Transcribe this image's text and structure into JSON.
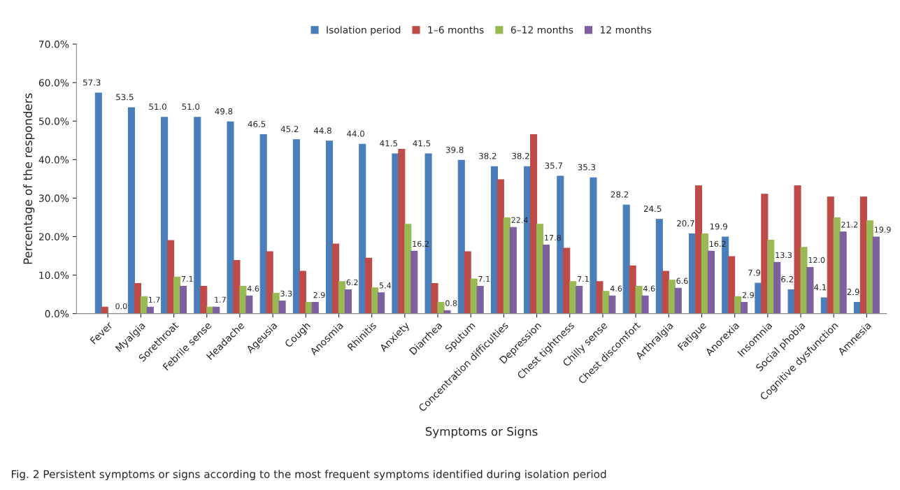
{
  "chart_data": {
    "type": "bar",
    "xlabel": "Symptoms or Signs",
    "ylabel": "Percentage of the responders",
    "categories": [
      "Fever",
      "Myalgia",
      "Sorethroat",
      "Febrile sense",
      "Headache",
      "Ageusia",
      "Cough",
      "Anosmia",
      "Rhinitis",
      "Anxiety",
      "Diarrhea",
      "Sputum",
      "Concentration difficulties",
      "Depression",
      "Chest tightness",
      "Chilly sense",
      "Chest discomfort",
      "Arthralgia",
      "Fatigue",
      "Anorexia",
      "Insomnia",
      "Social phobia",
      "Cognitive dysfunction",
      "Amnesia"
    ],
    "series": [
      {
        "name": "Isolation period",
        "color": "#4a7ebb",
        "values": [
          57.3,
          53.5,
          51.0,
          51.0,
          49.8,
          46.5,
          45.2,
          44.8,
          44.0,
          41.5,
          41.5,
          39.8,
          38.2,
          38.2,
          35.7,
          35.3,
          28.2,
          24.5,
          20.7,
          19.9,
          7.9,
          6.2,
          4.1,
          2.9
        ],
        "value_labels": [
          "57.3",
          "53.5",
          "51.0",
          "51.0",
          "49.8",
          "46.5",
          "45.2",
          "44.8",
          "44.0",
          "41.5",
          "41.5",
          "39.8",
          "38.2",
          "38.2",
          "35.7",
          "35.3",
          "28.2",
          "24.5",
          "20.7",
          "19.9",
          "7.9",
          "6.2",
          "4.1",
          "2.9"
        ]
      },
      {
        "name": "1–6 months",
        "color": "#be4b48",
        "values": [
          1.7,
          7.8,
          19.0,
          7.1,
          13.8,
          16.1,
          11.0,
          18.1,
          14.4,
          42.7,
          7.8,
          16.1,
          34.8,
          46.5,
          17.0,
          8.3,
          12.4,
          11.0,
          33.2,
          14.8,
          31.0,
          33.2,
          30.3,
          30.3
        ]
      },
      {
        "name": "6–12 months",
        "color": "#98b954",
        "values": [
          0.0,
          4.4,
          9.5,
          1.7,
          7.1,
          5.3,
          2.9,
          8.3,
          6.7,
          23.2,
          2.9,
          9.0,
          24.9,
          23.2,
          8.3,
          5.8,
          7.1,
          8.7,
          20.7,
          4.4,
          19.1,
          17.2,
          24.9,
          24.1
        ]
      },
      {
        "name": "12 months",
        "color": "#7d60a0",
        "values": [
          0.0,
          1.7,
          7.1,
          1.7,
          4.6,
          3.3,
          2.9,
          6.2,
          5.4,
          16.2,
          0.8,
          7.1,
          22.4,
          17.8,
          7.1,
          4.6,
          4.6,
          6.6,
          16.2,
          2.9,
          13.3,
          12.0,
          21.2,
          19.9
        ],
        "value_labels": [
          "0.0",
          "1.7",
          "7.1",
          "1.7",
          "4.6",
          "3.3",
          "2.9",
          "6.2",
          "5.4",
          "16.2",
          "0.8",
          "7.1",
          "22.4",
          "17.8",
          "7.1",
          "4.6",
          "4.6",
          "6.6",
          "16.2",
          "2.9",
          "13.3",
          "12.0",
          "21.2",
          "19.9"
        ]
      }
    ],
    "ylim": [
      0,
      70
    ],
    "yticks": [
      {
        "value": 0,
        "label": "0.0%"
      },
      {
        "value": 10,
        "label": "10.0%"
      },
      {
        "value": 20,
        "label": "20.0%"
      },
      {
        "value": 30,
        "label": "30.0%"
      },
      {
        "value": 40,
        "label": "40.0%"
      },
      {
        "value": 50,
        "label": "50.0%"
      },
      {
        "value": 60,
        "label": "60.0%"
      },
      {
        "value": 70,
        "label": "70.0%"
      }
    ],
    "grid": false,
    "legend": "top",
    "annotations": [
      "Fig. 2 Persistent symptoms or signs according to the most frequent symptoms identified during isolation period"
    ]
  }
}
